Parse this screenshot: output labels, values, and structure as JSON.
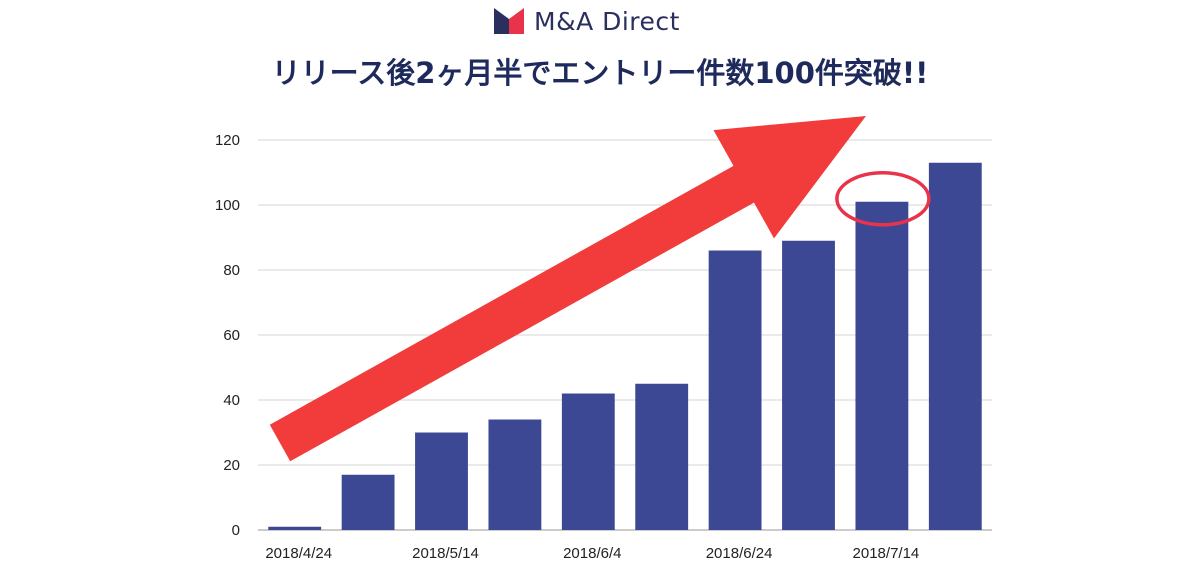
{
  "brand": {
    "logo_text": "M&A Direct",
    "colors": {
      "navy": "#2a2f5e",
      "red": "#e8334a"
    }
  },
  "headline": "リリース後2ヶ月半でエントリー件数100件突破!!",
  "chart_data": {
    "type": "bar",
    "title": "リリース後2ヶ月半でエントリー件数100件突破!!",
    "xlabel": "",
    "ylabel": "",
    "categories": [
      "2018/4/24",
      "",
      "2018/5/14",
      "",
      "2018/6/4",
      "",
      "2018/6/24",
      "",
      "2018/7/14",
      ""
    ],
    "x_tick_labels": [
      "2018/4/24",
      "2018/5/14",
      "2018/6/4",
      "2018/6/24",
      "2018/7/14"
    ],
    "values": [
      1,
      17,
      30,
      34,
      42,
      45,
      86,
      89,
      101,
      113
    ],
    "ylim": [
      0,
      120
    ],
    "y_ticks": [
      0,
      20,
      40,
      60,
      80,
      100,
      120
    ],
    "grid": true,
    "bar_color": "#3d4894",
    "annotations": [
      {
        "type": "arrow",
        "color": "#f23b3b",
        "description": "upward trend arrow"
      },
      {
        "type": "ellipse",
        "color": "#e8334a",
        "target_category_index": 8
      }
    ]
  }
}
